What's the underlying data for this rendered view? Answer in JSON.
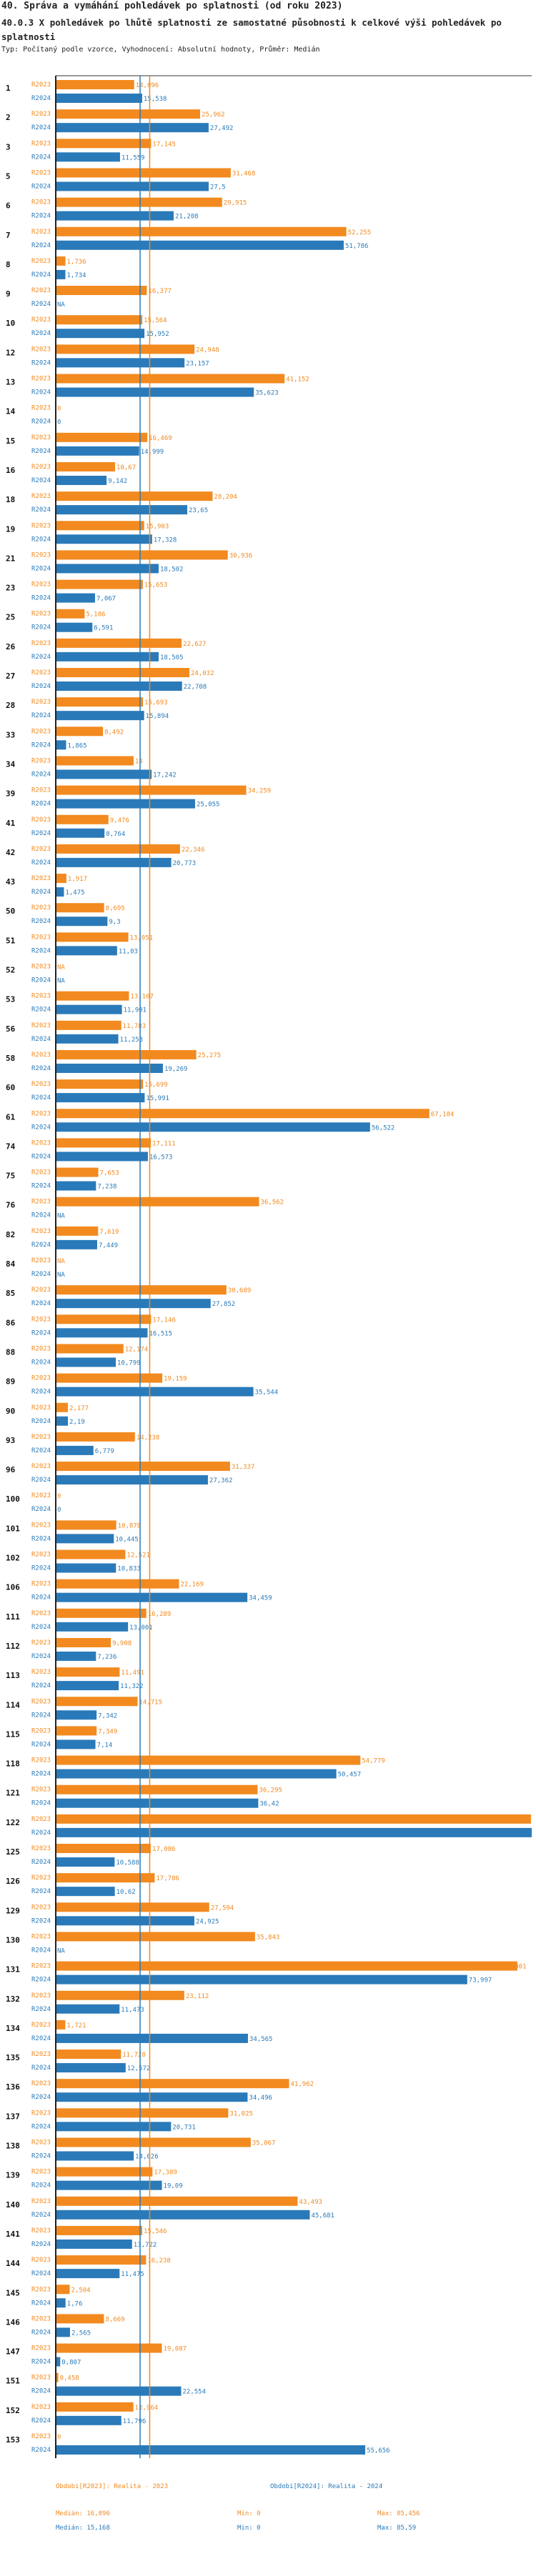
{
  "header": {
    "title": "40. Správa a vymáhání pohledávek po splatnosti (od roku 2023)",
    "subtitle": "40.0.3 X pohledávek po lhůtě splatnosti ze samostatné působnosti k celkové výši pohledávek po splatnosti",
    "info": "Typ: Počítaný podle vzorce, Vyhodnocení: Absolutní hodnoty, Průměr: Medián"
  },
  "colors": {
    "r2023": "#f28a1f",
    "r2024": "#2a7ab9",
    "label2023": "#f28a1f",
    "label2024": "#2a7ab9"
  },
  "chart_data": {
    "type": "bar",
    "orientation": "horizontal",
    "title": "40.0.3 X pohledávek po lhůtě splatnosti ze samostatné působnosti k celkové výši pohledávek po splatnosti",
    "xlim": [
      0,
      85.59
    ],
    "series_names": [
      "R2023",
      "R2024"
    ],
    "rows": [
      {
        "id": "1",
        "r2023": "14,096",
        "r2024": "15,538"
      },
      {
        "id": "2",
        "r2023": "25,962",
        "r2024": "27,492"
      },
      {
        "id": "3",
        "r2023": "17,145",
        "r2024": "11,559"
      },
      {
        "id": "5",
        "r2023": "31,468",
        "r2024": "27,5"
      },
      {
        "id": "6",
        "r2023": "29,915",
        "r2024": "21,208"
      },
      {
        "id": "7",
        "r2023": "52,255",
        "r2024": "51,786"
      },
      {
        "id": "8",
        "r2023": "1,736",
        "r2024": "1,734"
      },
      {
        "id": "9",
        "r2023": "16,377",
        "r2024": "NA"
      },
      {
        "id": "10",
        "r2023": "15,564",
        "r2024": "15,952"
      },
      {
        "id": "12",
        "r2023": "24,948",
        "r2024": "23,157"
      },
      {
        "id": "13",
        "r2023": "41,152",
        "r2024": "35,623"
      },
      {
        "id": "14",
        "r2023": "0",
        "r2024": "0"
      },
      {
        "id": "15",
        "r2023": "16,469",
        "r2024": "14,999"
      },
      {
        "id": "16",
        "r2023": "10,67",
        "r2024": "9,142"
      },
      {
        "id": "18",
        "r2023": "28,204",
        "r2024": "23,65"
      },
      {
        "id": "19",
        "r2023": "15,903",
        "r2024": "17,328"
      },
      {
        "id": "21",
        "r2023": "30,936",
        "r2024": "18,502"
      },
      {
        "id": "23",
        "r2023": "15,653",
        "r2024": "7,067"
      },
      {
        "id": "25",
        "r2023": "5,186",
        "r2024": "6,591"
      },
      {
        "id": "26",
        "r2023": "22,627",
        "r2024": "18,505"
      },
      {
        "id": "27",
        "r2023": "24,032",
        "r2024": "22,708"
      },
      {
        "id": "28",
        "r2023": "15,693",
        "r2024": "15,894"
      },
      {
        "id": "33",
        "r2023": "8,492",
        "r2024": "1,865"
      },
      {
        "id": "34",
        "r2023": "14",
        "r2024": "17,242"
      },
      {
        "id": "39",
        "r2023": "34,259",
        "r2024": "25,055"
      },
      {
        "id": "41",
        "r2023": "9,476",
        "r2024": "8,764"
      },
      {
        "id": "42",
        "r2023": "22,346",
        "r2024": "20,773"
      },
      {
        "id": "43",
        "r2023": "1,917",
        "r2024": "1,475"
      },
      {
        "id": "50",
        "r2023": "8,695",
        "r2024": "9,3"
      },
      {
        "id": "51",
        "r2023": "13,051",
        "r2024": "11,03"
      },
      {
        "id": "52",
        "r2023": "NA",
        "r2024": "NA"
      },
      {
        "id": "53",
        "r2023": "13,167",
        "r2024": "11,901"
      },
      {
        "id": "56",
        "r2023": "11,783",
        "r2024": "11,253"
      },
      {
        "id": "58",
        "r2023": "25,275",
        "r2024": "19,269"
      },
      {
        "id": "60",
        "r2023": "15,699",
        "r2024": "15,991"
      },
      {
        "id": "61",
        "r2023": "67,184",
        "r2024": "56,522"
      },
      {
        "id": "74",
        "r2023": "17,111",
        "r2024": "16,573"
      },
      {
        "id": "75",
        "r2023": "7,653",
        "r2024": "7,238"
      },
      {
        "id": "76",
        "r2023": "36,562",
        "r2024": "NA"
      },
      {
        "id": "82",
        "r2023": "7,619",
        "r2024": "7,449"
      },
      {
        "id": "84",
        "r2023": "NA",
        "r2024": "NA"
      },
      {
        "id": "85",
        "r2023": "30,689",
        "r2024": "27,852"
      },
      {
        "id": "86",
        "r2023": "17,146",
        "r2024": "16,515"
      },
      {
        "id": "88",
        "r2023": "12,174",
        "r2024": "10,799"
      },
      {
        "id": "89",
        "r2023": "19,159",
        "r2024": "35,544"
      },
      {
        "id": "90",
        "r2023": "2,177",
        "r2024": "2,19"
      },
      {
        "id": "93",
        "r2023": "14,238",
        "r2024": "6,779"
      },
      {
        "id": "96",
        "r2023": "31,337",
        "r2024": "27,362"
      },
      {
        "id": "100",
        "r2023": "0",
        "r2024": "0"
      },
      {
        "id": "101",
        "r2023": "10,878",
        "r2024": "10,445"
      },
      {
        "id": "102",
        "r2023": "12,521",
        "r2024": "10,833"
      },
      {
        "id": "106",
        "r2023": "22,169",
        "r2024": "34,459"
      },
      {
        "id": "111",
        "r2023": "16,289",
        "r2024": "13,001"
      },
      {
        "id": "112",
        "r2023": "9,908",
        "r2024": "7,236"
      },
      {
        "id": "113",
        "r2023": "11,491",
        "r2024": "11,322"
      },
      {
        "id": "114",
        "r2023": "14,715",
        "r2024": "7,342"
      },
      {
        "id": "115",
        "r2023": "7,349",
        "r2024": "7,14"
      },
      {
        "id": "118",
        "r2023": "54,779",
        "r2024": "50,457"
      },
      {
        "id": "121",
        "r2023": "36,295",
        "r2024": "36,42"
      },
      {
        "id": "122",
        "r2023": "85,456",
        "r2024": "85,59"
      },
      {
        "id": "125",
        "r2023": "17,086",
        "r2024": "10,588"
      },
      {
        "id": "126",
        "r2023": "17,786",
        "r2024": "10,62"
      },
      {
        "id": "129",
        "r2023": "27,594",
        "r2024": "24,925"
      },
      {
        "id": "130",
        "r2023": "35,843",
        "r2024": "NA"
      },
      {
        "id": "131",
        "r2023": "83,001",
        "r2024": "73,997"
      },
      {
        "id": "132",
        "r2023": "23,112",
        "r2024": "11,473"
      },
      {
        "id": "134",
        "r2023": "1,721",
        "r2024": "34,565"
      },
      {
        "id": "135",
        "r2023": "11,728",
        "r2024": "12,572"
      },
      {
        "id": "136",
        "r2023": "41,962",
        "r2024": "34,496"
      },
      {
        "id": "137",
        "r2023": "31,025",
        "r2024": "20,731"
      },
      {
        "id": "138",
        "r2023": "35,067",
        "r2024": "14,026"
      },
      {
        "id": "139",
        "r2023": "17,389",
        "r2024": "19,09"
      },
      {
        "id": "140",
        "r2023": "43,493",
        "r2024": "45,681"
      },
      {
        "id": "141",
        "r2023": "15,546",
        "r2024": "13,722"
      },
      {
        "id": "144",
        "r2023": "16,238",
        "r2024": "11,475"
      },
      {
        "id": "145",
        "r2023": "2,504",
        "r2024": "1,76"
      },
      {
        "id": "146",
        "r2023": "8,669",
        "r2024": "2,565"
      },
      {
        "id": "147",
        "r2023": "19,087",
        "r2024": "0,807"
      },
      {
        "id": "151",
        "r2023": "0,458",
        "r2024": "22,554"
      },
      {
        "id": "152",
        "r2023": "13,964",
        "r2024": "11,796"
      },
      {
        "id": "153",
        "r2023": "0",
        "r2024": "55,656"
      }
    ],
    "median_2023": 16.896,
    "median_2024": 15.168
  },
  "footer": {
    "left_head": "Obdobi[R2023]: Realita - 2023",
    "right_head": "Obdobi[R2024]: Realita - 2024",
    "row1": [
      "Medián: 16,896",
      "Min: 0",
      "Max: 85,456"
    ],
    "row2": [
      "Medián: 15,168",
      "Min: 0",
      "Max: 85,59"
    ]
  }
}
